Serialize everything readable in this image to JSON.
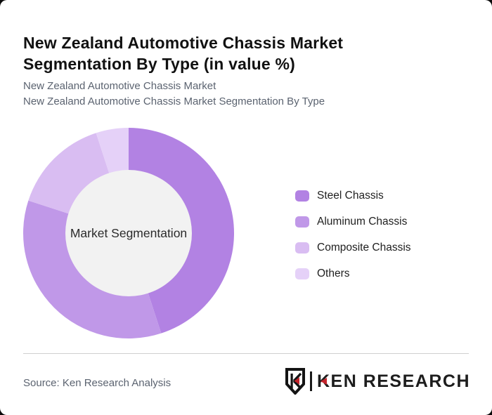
{
  "page": {
    "title": "New Zealand Automotive Chassis Market Segmentation By Type (in value %)",
    "subtitle_line1": "New Zealand Automotive Chassis Market",
    "subtitle_line2": "New Zealand Automotive Chassis Market Segmentation By Type"
  },
  "chart_data": {
    "type": "pie",
    "variant": "donut",
    "title": "New Zealand Automotive Chassis Market Segmentation By Type (in value %)",
    "center_label": "Market Segmentation",
    "categories": [
      "Steel Chassis",
      "Aluminum Chassis",
      "Composite Chassis",
      "Others"
    ],
    "values": [
      45,
      35,
      15,
      5
    ],
    "unit": "value %",
    "colors": [
      "#b282e3",
      "#c098e8",
      "#d9bdf2",
      "#e5d1f8"
    ],
    "start_angle_deg": 0,
    "direction": "clockwise",
    "legend_position": "right",
    "hole_color": "#f2f2f2",
    "outer_radius_px": 150,
    "inner_radius_px": 90
  },
  "legend": {
    "items": [
      {
        "label": "Steel Chassis",
        "color": "#b282e3"
      },
      {
        "label": "Aluminum Chassis",
        "color": "#c098e8"
      },
      {
        "label": "Composite Chassis",
        "color": "#d9bdf2"
      },
      {
        "label": "Others",
        "color": "#e5d1f8"
      }
    ]
  },
  "footer": {
    "source": "Source: Ken Research Analysis",
    "logo": {
      "brand": "KEN RESEARCH",
      "monogram": "K"
    }
  }
}
